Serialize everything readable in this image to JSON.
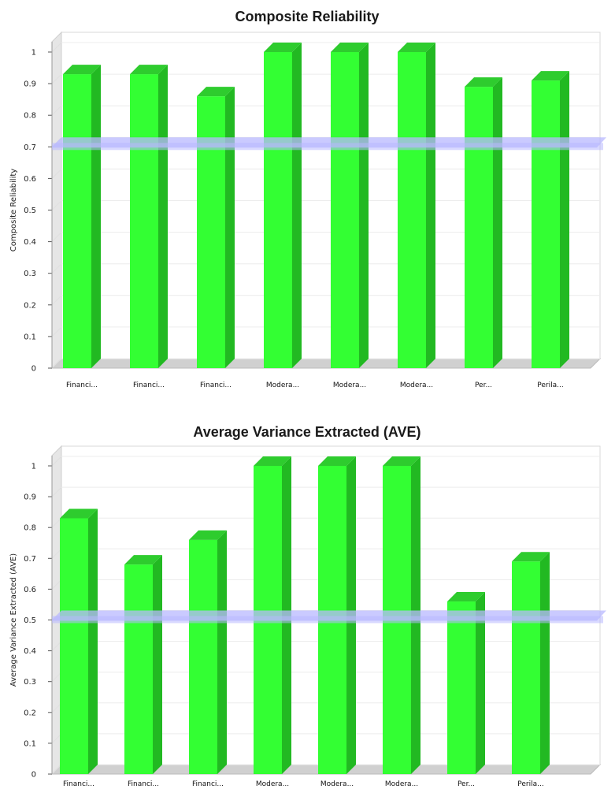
{
  "chart_data": [
    {
      "type": "bar",
      "title": "Composite Reliability",
      "ylabel": "Composite Reliability",
      "xlabel": "",
      "ylim": [
        0,
        1
      ],
      "yticks": [
        "0",
        "0.1",
        "0.2",
        "0.3",
        "0.4",
        "0.5",
        "0.6",
        "0.7",
        "0.8",
        "0.9",
        "1"
      ],
      "categories": [
        "Financi...",
        "Financi...",
        "Financi...",
        "Modera...",
        "Modera...",
        "Modera...",
        "Per...",
        "Perila..."
      ],
      "values": [
        0.93,
        0.93,
        0.86,
        1.0,
        1.0,
        1.0,
        0.89,
        0.91
      ],
      "threshold": 0.7,
      "grid": true,
      "colors": {
        "bar": "#33ff33",
        "bar_side": "#22b922",
        "bar_top": "#2ecc2e",
        "threshold": "#b8b8ff"
      }
    },
    {
      "type": "bar",
      "title": "Average Variance Extracted (AVE)",
      "ylabel": "Average Variance Extracted (AVE)",
      "xlabel": "",
      "ylim": [
        0,
        1
      ],
      "yticks": [
        "0",
        "0.1",
        "0.2",
        "0.3",
        "0.4",
        "0.5",
        "0.6",
        "0.7",
        "0.8",
        "0.9",
        "1"
      ],
      "categories": [
        "Financi...",
        "Financi...",
        "Financi...",
        "Modera...",
        "Modera...",
        "Modera...",
        "Per...",
        "Perila..."
      ],
      "values": [
        0.83,
        0.68,
        0.76,
        1.0,
        1.0,
        1.0,
        0.56,
        0.69
      ],
      "threshold": 0.5,
      "grid": true,
      "colors": {
        "bar": "#33ff33",
        "bar_side": "#22b922",
        "bar_top": "#2ecc2e",
        "threshold": "#b8b8ff"
      }
    }
  ]
}
